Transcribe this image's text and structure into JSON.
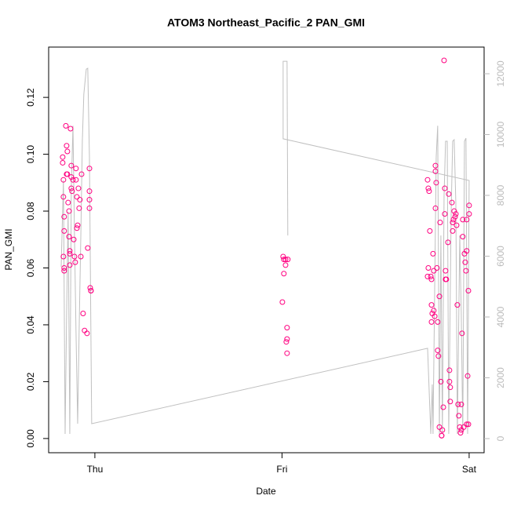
{
  "chart_data": {
    "type": "scatter",
    "title": "ATOM3 Northeast_Pacific_2 PAN_GMI",
    "x_label": "Date",
    "y_label": "PAN_GMI",
    "xlim": [
      -0.247,
      2.08
    ],
    "ylim": [
      -0.005,
      0.1377
    ],
    "y2lim": [
      -464,
      12877
    ],
    "xticks": [
      {
        "value": 0,
        "label": "Thu"
      },
      {
        "value": 1,
        "label": "Fri"
      },
      {
        "value": 2,
        "label": "Sat"
      }
    ],
    "yticks": [
      {
        "value": 0,
        "label": "0.00"
      },
      {
        "value": 0.02,
        "label": "0.02"
      },
      {
        "value": 0.04,
        "label": "0.04"
      },
      {
        "value": 0.06,
        "label": "0.06"
      },
      {
        "value": 0.08,
        "label": "0.08"
      },
      {
        "value": 0.1,
        "label": "0.10"
      },
      {
        "value": 0.12,
        "label": "0.12"
      }
    ],
    "y2ticks": [
      0,
      2000,
      4000,
      6000,
      8000,
      10000,
      12000
    ],
    "series": [
      {
        "type": "scatter",
        "color": "#ff0080",
        "x": [
          -0.172,
          -0.172,
          -0.168,
          -0.168,
          -0.164,
          -0.164,
          -0.168,
          -0.164,
          -0.164,
          -0.155,
          -0.151,
          -0.147,
          -0.151,
          -0.147,
          -0.143,
          -0.138,
          -0.138,
          -0.134,
          -0.134,
          -0.134,
          -0.13,
          -0.126,
          -0.126,
          -0.126,
          -0.122,
          -0.117,
          -0.113,
          -0.109,
          -0.105,
          -0.101,
          -0.101,
          -0.096,
          -0.096,
          -0.092,
          -0.088,
          -0.084,
          -0.08,
          -0.075,
          -0.071,
          -0.063,
          -0.055,
          -0.042,
          -0.038,
          -0.029,
          -0.029,
          -0.029,
          -0.029,
          -0.025,
          -0.021,
          -0.021,
          1.006,
          1.01,
          1.019,
          1.031,
          1.01,
          1.019,
          1.002,
          1.027,
          1.027,
          1.023,
          1.027,
          1.778,
          1.782,
          1.786,
          1.782,
          1.778,
          1.79,
          1.795,
          1.799,
          1.799,
          1.799,
          1.803,
          1.807,
          1.811,
          1.811,
          1.816,
          1.82,
          1.82,
          1.824,
          1.82,
          1.828,
          1.832,
          1.832,
          1.836,
          1.841,
          1.845,
          1.841,
          1.849,
          1.853,
          1.853,
          1.857,
          1.862,
          1.866,
          1.87,
          1.87,
          1.874,
          1.878,
          1.874,
          1.887,
          1.891,
          1.895,
          1.895,
          1.899,
          1.899,
          1.908,
          1.912,
          1.912,
          1.916,
          1.92,
          1.925,
          1.929,
          1.933,
          1.937,
          1.941,
          1.945,
          1.95,
          1.954,
          1.958,
          1.958,
          1.962,
          1.966,
          1.966,
          1.975,
          1.979,
          1.983,
          1.987,
          1.992,
          1.987,
          1.996,
          1.996,
          2.0,
          2.0,
          1.987,
          1.971
        ],
        "values": [
          0.099,
          0.097,
          0.091,
          0.085,
          0.078,
          0.073,
          0.064,
          0.06,
          0.059,
          0.11,
          0.103,
          0.101,
          0.093,
          0.093,
          0.083,
          0.08,
          0.071,
          0.066,
          0.061,
          0.065,
          0.109,
          0.096,
          0.092,
          0.088,
          0.087,
          0.091,
          0.07,
          0.064,
          0.062,
          0.091,
          0.095,
          0.085,
          0.074,
          0.075,
          0.088,
          0.081,
          0.084,
          0.064,
          0.093,
          0.044,
          0.038,
          0.037,
          0.067,
          0.095,
          0.087,
          0.084,
          0.081,
          0.053,
          0.052,
          0.052,
          0.064,
          0.063,
          0.063,
          0.063,
          0.058,
          0.061,
          0.048,
          0.039,
          0.035,
          0.034,
          0.03,
          0.091,
          0.088,
          0.087,
          0.06,
          0.057,
          0.073,
          0.057,
          0.056,
          0.047,
          0.041,
          0.044,
          0.065,
          0.059,
          0.045,
          0.043,
          0.096,
          0.094,
          0.09,
          0.081,
          0.06,
          0.041,
          0.031,
          0.029,
          0.05,
          0.076,
          0.004,
          0.02,
          0.001,
          0.001,
          0.003,
          0.011,
          0.133,
          0.088,
          0.079,
          0.056,
          0.056,
          0.059,
          0.069,
          0.086,
          0.02,
          0.024,
          0.018,
          0.013,
          0.083,
          0.076,
          0.073,
          0.077,
          0.08,
          0.078,
          0.079,
          0.075,
          0.047,
          0.012,
          0.008,
          0.004,
          0.002,
          0.003,
          0.012,
          0.037,
          0.077,
          0.071,
          0.065,
          0.062,
          0.059,
          0.066,
          0.022,
          0.005,
          0.005,
          0.052,
          0.082,
          0.079,
          0.077,
          0.004
        ]
      },
      {
        "type": "line",
        "axis": "y2",
        "color": "#c0c0c0",
        "x": [
          -0.18,
          -0.168,
          -0.159,
          -0.151,
          -0.143,
          -0.134,
          -0.126,
          -0.117,
          -0.109,
          -0.101,
          -0.092,
          -0.084,
          -0.075,
          -0.067,
          -0.059,
          -0.046,
          -0.038,
          -0.029,
          -0.021,
          -0.017,
          1.778,
          1.795,
          1.803,
          1.807,
          1.824,
          1.832,
          1.841,
          1.849,
          1.857,
          1.866,
          1.874,
          1.883,
          1.891,
          1.904,
          1.912,
          1.92,
          1.929,
          1.937,
          1.95,
          1.958,
          1.966,
          1.975,
          1.983,
          1.992,
          2.0,
          1.006,
          1.006,
          1.027,
          1.031
        ],
        "values": [
          5650,
          8490,
          155,
          4100,
          7460,
          155,
          8230,
          10290,
          6680,
          3590,
          490,
          3590,
          6680,
          9780,
          11330,
          12150,
          12180,
          9260,
          3330,
          490,
          2970,
          155,
          1780,
          155,
          9260,
          10290,
          155,
          6680,
          155,
          7970,
          9780,
          9780,
          155,
          7460,
          9780,
          9830,
          7720,
          155,
          6680,
          4100,
          155,
          9780,
          9880,
          155,
          8490,
          9860,
          12410,
          12410,
          6680
        ]
      }
    ]
  }
}
